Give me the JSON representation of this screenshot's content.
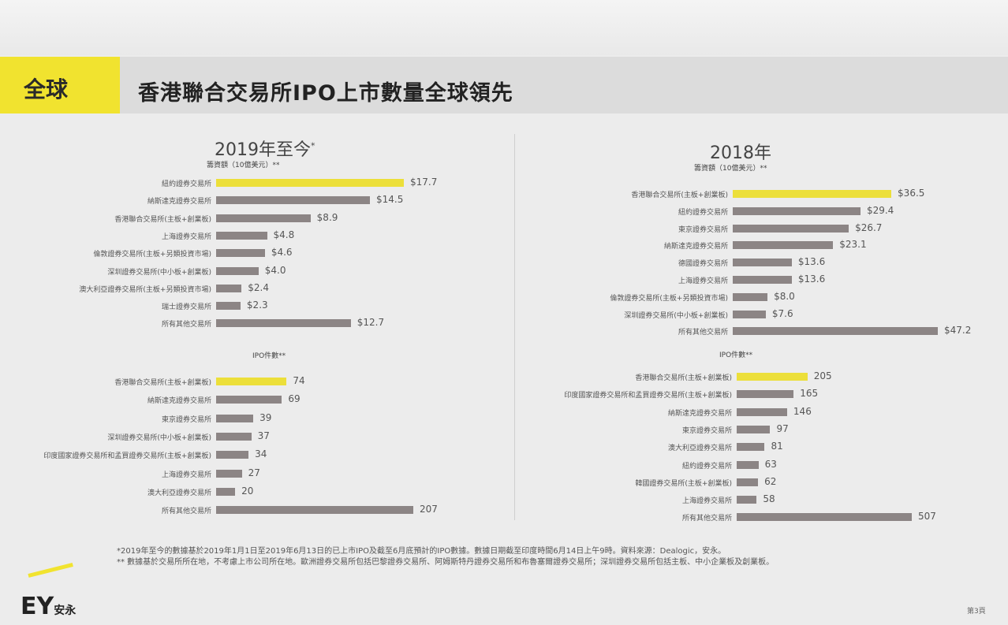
{
  "header": {
    "tag": "全球",
    "title": "香港聯合交易所IPO上市數量全球領先"
  },
  "chart_data": [
    {
      "type": "bar",
      "orientation": "horizontal",
      "title": "2019年至今",
      "title_mark": "*",
      "subtitle": "籌資額（10億美元）**",
      "value_prefix": "$",
      "categories": [
        "紐約證券交易所",
        "納斯達克證券交易所",
        "香港聯合交易所(主板+創業板)",
        "上海證券交易所",
        "倫敦證券交易所(主板+另類投資市場)",
        "深圳證券交易所(中小板+創業板)",
        "澳大利亞證券交易所(主板+另類投資市場)",
        "瑞士證券交易所",
        "所有其他交易所"
      ],
      "values": [
        17.7,
        14.5,
        8.9,
        4.8,
        4.6,
        4.0,
        2.4,
        2.3,
        12.7
      ],
      "value_labels": [
        "$17.7",
        "$14.5",
        "$8.9",
        "$4.8",
        "$4.6",
        "$4.0",
        "$2.4",
        "$2.3",
        "$12.7"
      ],
      "highlight": 0,
      "xlim": [
        0,
        17.7
      ]
    },
    {
      "type": "bar",
      "orientation": "horizontal",
      "title": "2018年",
      "subtitle": "籌資額（10億美元）**",
      "value_prefix": "$",
      "categories": [
        "香港聯合交易所(主板+創業板)",
        "紐約證券交易所",
        "東京證券交易所",
        "納斯達克證券交易所",
        "德國證券交易所",
        "上海證券交易所",
        "倫敦證券交易所(主板+另類投資市場)",
        "深圳證券交易所(中小板+創業板)",
        "所有其他交易所"
      ],
      "values": [
        36.5,
        29.4,
        26.7,
        23.1,
        13.6,
        13.6,
        8.0,
        7.6,
        47.2
      ],
      "value_labels": [
        "$36.5",
        "$29.4",
        "$26.7",
        "$23.1",
        "$13.6",
        "$13.6",
        "$8.0",
        "$7.6",
        "$47.2"
      ],
      "highlight": 0,
      "xlim": [
        0,
        47.2
      ]
    },
    {
      "type": "bar",
      "orientation": "horizontal",
      "subtitle": "IPO件數**",
      "categories": [
        "香港聯合交易所(主板+創業板)",
        "納斯達克證券交易所",
        "東京證券交易所",
        "深圳證券交易所(中小板+創業板)",
        "印度國家證券交易所和孟買證券交易所(主板+創業板)",
        "上海證券交易所",
        "澳大利亞證券交易所",
        "所有其他交易所"
      ],
      "values": [
        74,
        69,
        39,
        37,
        34,
        27,
        20,
        207
      ],
      "value_labels": [
        "74",
        "69",
        "39",
        "37",
        "34",
        "27",
        "20",
        "207"
      ],
      "highlight": 0,
      "xlim": [
        0,
        207
      ]
    },
    {
      "type": "bar",
      "orientation": "horizontal",
      "subtitle": "IPO件數**",
      "categories": [
        "香港聯合交易所(主板+創業板)",
        "印度國家證券交易所和孟買證券交易所(主板+創業板)",
        "納斯達克證券交易所",
        "東京證券交易所",
        "澳大利亞證券交易所",
        "紐約證券交易所",
        "韓國證券交易所(主板+創業板)",
        "上海證券交易所",
        "所有其他交易所"
      ],
      "values": [
        205,
        165,
        146,
        97,
        81,
        63,
        62,
        58,
        507
      ],
      "value_labels": [
        "205",
        "165",
        "146",
        "97",
        "81",
        "63",
        "62",
        "58",
        "507"
      ],
      "highlight": 0,
      "xlim": [
        0,
        507
      ]
    }
  ],
  "footnotes": [
    "*2019年至今的數據基於2019年1月1日至2019年6月13日的已上市IPO及截至6月底預計的IPO數據。數據日期截至印度時間6月14日上午9時。資料來源：Dealogic，安永。",
    "** 數據基於交易所所在地，不考慮上市公司所在地。歐洲證券交易所包括巴黎證券交易所、阿姆斯特丹證券交易所和布魯塞爾證券交易所；深圳證券交易所包括主板、中小企業板及創業板。"
  ],
  "logo": {
    "brand": "EY",
    "local": "安永"
  },
  "page_number": "第3頁",
  "colors": {
    "highlight": "#ecdf3a",
    "bar": "#8c8585",
    "accent": "#f1e32f"
  }
}
